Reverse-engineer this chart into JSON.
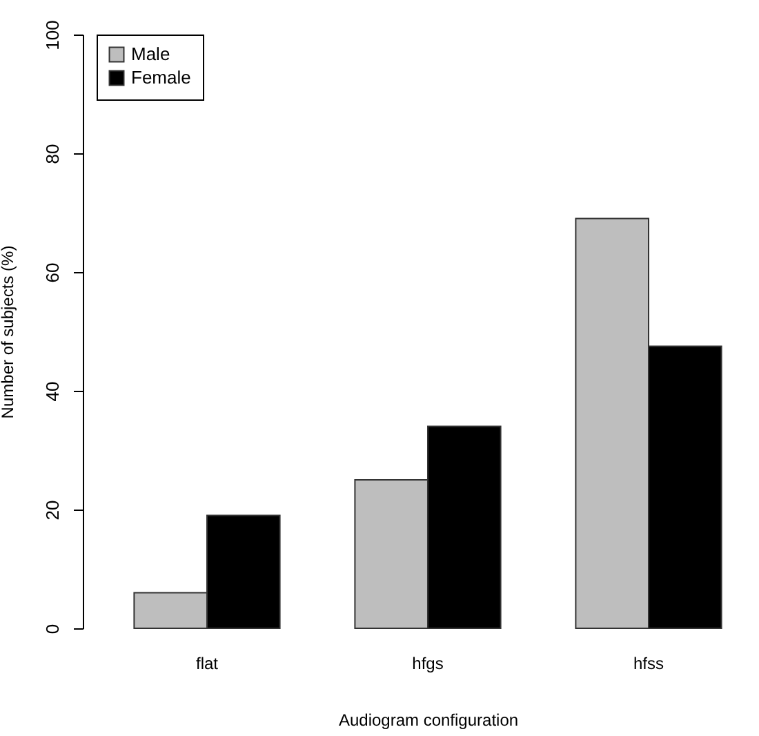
{
  "chart_data": {
    "type": "bar",
    "xlabel": "Audiogram configuration",
    "ylabel": "Number of subjects (%)",
    "categories": [
      "flat",
      "hfgs",
      "hfss"
    ],
    "series": [
      {
        "name": "Male",
        "color": "#bebebe",
        "values": [
          6,
          25,
          69
        ]
      },
      {
        "name": "Female",
        "color": "#000000",
        "values": [
          19,
          34,
          47.5
        ]
      }
    ],
    "ylim": [
      0,
      100
    ],
    "yticks": [
      0,
      20,
      40,
      60,
      80,
      100
    ],
    "legend": "top left"
  }
}
